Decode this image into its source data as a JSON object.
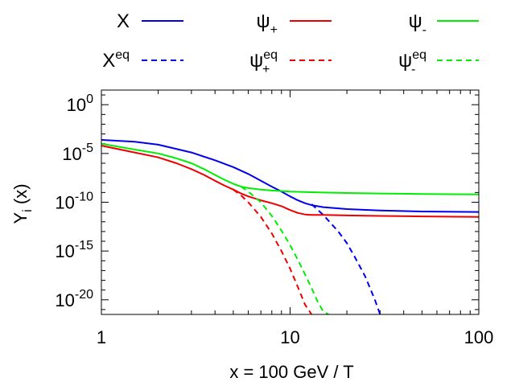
{
  "chart_data": {
    "type": "line",
    "xscale": "log",
    "yscale": "log",
    "xlim": [
      1,
      100
    ],
    "ylim_exp": [
      -21.5,
      1.5
    ],
    "xlabel": "x = 100 GeV / T",
    "ylabel_main": "Y",
    "ylabel_sub": "i",
    "ylabel_tail": " (x)",
    "x_ticks": [
      {
        "value": 1,
        "label": "1"
      },
      {
        "value": 10,
        "label": "10"
      },
      {
        "value": 100,
        "label": "100"
      }
    ],
    "y_ticks": [
      {
        "exp": 0,
        "base": "10",
        "sup": "0"
      },
      {
        "exp": -5,
        "base": "10",
        "sup": "-5"
      },
      {
        "exp": -10,
        "base": "10",
        "sup": "-10"
      },
      {
        "exp": -15,
        "base": "10",
        "sup": "-15"
      },
      {
        "exp": -20,
        "base": "10",
        "sup": "-20"
      }
    ],
    "legend": [
      {
        "key": "X",
        "main": "X",
        "sup": "",
        "sub": "",
        "color": "#0000ee",
        "dashed": false
      },
      {
        "key": "psi_plus",
        "main": "ψ",
        "sup": "",
        "sub": "+",
        "color": "#ee0000",
        "dashed": false
      },
      {
        "key": "psi_minus",
        "main": "ψ",
        "sup": "",
        "sub": "-",
        "color": "#00ee00",
        "dashed": false
      },
      {
        "key": "X_eq",
        "main": "X",
        "sup": "eq",
        "sub": "",
        "color": "#0000ee",
        "dashed": true
      },
      {
        "key": "psi_plus_eq",
        "main": "ψ",
        "sup": "eq",
        "sub": "+",
        "color": "#ee0000",
        "dashed": true
      },
      {
        "key": "psi_minus_eq",
        "main": "ψ",
        "sup": "eq",
        "sub": "-",
        "color": "#00ee00",
        "dashed": true
      }
    ],
    "series": [
      {
        "name": "X",
        "color": "#0000ee",
        "dashed": false,
        "x": [
          1,
          1.5,
          2,
          3,
          4,
          5,
          6,
          7,
          8,
          9,
          10,
          11,
          12,
          13,
          15,
          20,
          30,
          50,
          100
        ],
        "y_exp": [
          -3.6,
          -3.8,
          -4.1,
          -4.9,
          -5.7,
          -6.4,
          -7.1,
          -7.8,
          -8.4,
          -8.9,
          -9.4,
          -9.8,
          -10.1,
          -10.3,
          -10.5,
          -10.7,
          -10.85,
          -10.95,
          -11.0
        ]
      },
      {
        "name": "X_eq",
        "color": "#0000ee",
        "dashed": true,
        "x": [
          13,
          15,
          18,
          20,
          22,
          25,
          28,
          30
        ],
        "y_exp": [
          -10.2,
          -11.3,
          -13.0,
          -14.2,
          -15.6,
          -17.6,
          -19.9,
          -21.5
        ]
      },
      {
        "name": "psi_plus",
        "color": "#ee0000",
        "dashed": false,
        "x": [
          1,
          1.5,
          2,
          2.5,
          3,
          3.5,
          4,
          4.5,
          5,
          5.5,
          6,
          7,
          8,
          9,
          10,
          11,
          12,
          13,
          15,
          20,
          30,
          50,
          100
        ],
        "y_exp": [
          -4.2,
          -4.9,
          -5.4,
          -6.0,
          -6.6,
          -7.2,
          -7.8,
          -8.3,
          -8.7,
          -9.1,
          -9.4,
          -9.8,
          -10.1,
          -10.4,
          -10.8,
          -11.1,
          -11.25,
          -11.3,
          -11.3,
          -11.35,
          -11.4,
          -11.45,
          -11.5
        ]
      },
      {
        "name": "psi_plus_eq",
        "color": "#ee0000",
        "dashed": true,
        "x": [
          5,
          5.5,
          6,
          7,
          8,
          9,
          10,
          11,
          12,
          13
        ],
        "y_exp": [
          -8.7,
          -9.3,
          -10.0,
          -11.5,
          -13.2,
          -15.0,
          -16.8,
          -18.7,
          -20.5,
          -21.5
        ]
      },
      {
        "name": "psi_minus",
        "color": "#00ee00",
        "dashed": false,
        "x": [
          1,
          1.5,
          2,
          2.5,
          3,
          3.5,
          4,
          4.5,
          5,
          5.5,
          6,
          7,
          8,
          10,
          12,
          15,
          20,
          30,
          50,
          100
        ],
        "y_exp": [
          -4.0,
          -4.6,
          -5.0,
          -5.5,
          -6.0,
          -6.6,
          -7.2,
          -7.7,
          -8.1,
          -8.4,
          -8.55,
          -8.7,
          -8.8,
          -8.9,
          -8.95,
          -9.0,
          -9.05,
          -9.1,
          -9.15,
          -9.2
        ]
      },
      {
        "name": "psi_minus_eq",
        "color": "#00ee00",
        "dashed": true,
        "x": [
          5.5,
          6,
          7,
          8,
          9,
          10,
          11,
          12,
          13,
          14,
          15,
          16
        ],
        "y_exp": [
          -8.4,
          -8.9,
          -10.0,
          -11.4,
          -12.9,
          -14.4,
          -15.9,
          -17.4,
          -18.8,
          -20.2,
          -21.2,
          -21.5
        ]
      }
    ]
  }
}
